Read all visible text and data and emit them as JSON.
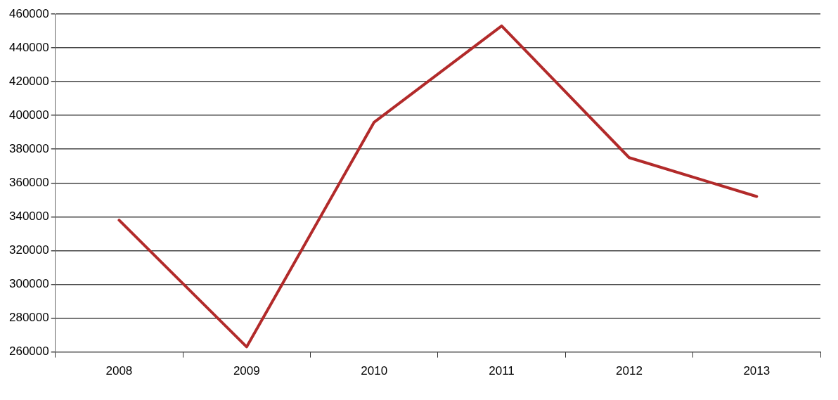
{
  "chart_data": {
    "type": "line",
    "categories": [
      "2008",
      "2009",
      "2010",
      "2011",
      "2012",
      "2013"
    ],
    "series": [
      {
        "color": "#b22a2a",
        "values": [
          338000,
          263000,
          396000,
          453000,
          375000,
          352000
        ]
      }
    ],
    "ylim": [
      260000,
      460000
    ],
    "yticks": [
      260000,
      280000,
      300000,
      320000,
      340000,
      360000,
      380000,
      400000,
      420000,
      440000,
      460000
    ],
    "grid": "y",
    "legend": false,
    "marker": "none",
    "line_style": "solid"
  }
}
